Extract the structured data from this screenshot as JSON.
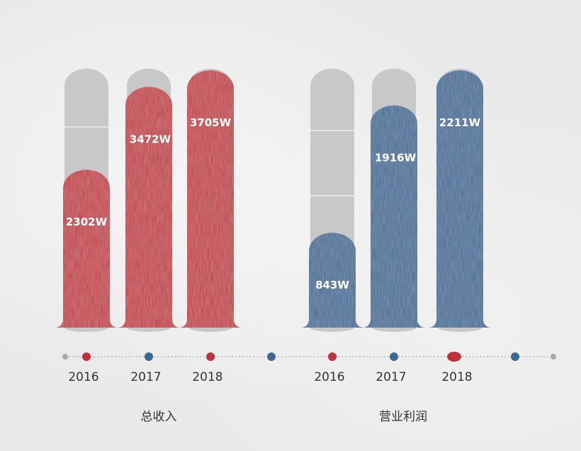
{
  "chart_data": [
    {
      "type": "bar",
      "title": "总收入",
      "categories": [
        "2016",
        "2017",
        "2018"
      ],
      "values": [
        2302,
        3472,
        3705
      ],
      "value_labels": [
        "2302W",
        "3472W",
        "3705W"
      ],
      "ylim": [
        0,
        3705
      ],
      "color": "#c0303d"
    },
    {
      "type": "bar",
      "title": "营业利润",
      "categories": [
        "2016",
        "2017",
        "2018"
      ],
      "values": [
        843,
        1916,
        2211
      ],
      "value_labels": [
        "843W",
        "1916W",
        "2211W"
      ],
      "ylim": [
        0,
        2211
      ],
      "color": "#3b6994"
    }
  ],
  "colors": {
    "track": "#c8c8c8",
    "red": "#c0303d",
    "blue": "#3b6994",
    "dot_gray": "#a9a9a9",
    "axis_dots": "#b5b5b5"
  }
}
